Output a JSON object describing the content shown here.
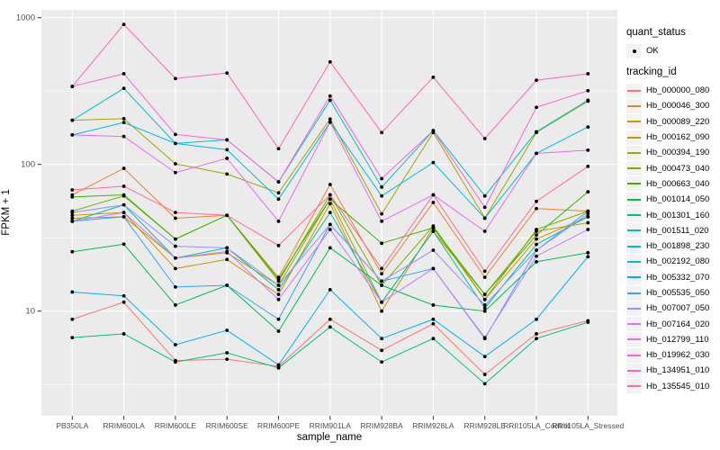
{
  "legend": {
    "quant_status_title": "quant_status",
    "ok_label": "OK",
    "tracking_id_title": "tracking_id"
  },
  "chart_data": {
    "type": "line",
    "title": "",
    "xlabel": "sample_name",
    "ylabel": "FPKM + 1",
    "yscale": "log10",
    "ylim": [
      2.4,
      1150
    ],
    "y_major_ticks": [
      1000,
      100,
      10
    ],
    "y_minor_ticks": [
      316.2,
      31.62,
      3.162
    ],
    "grid": true,
    "legend_position": "right",
    "point_shape": "black-dot",
    "panel_background": "#EBEBEB",
    "gridline_color": "#FFFFFF",
    "tick_label_color": "#4D4D4D",
    "x": [
      "PB350LA",
      "RRIM600LA",
      "RRIM600LE",
      "RRIM600SE",
      "RRIM600PE",
      "RRIM901LA",
      "RRIM928BA",
      "RRIM928LA",
      "RRIM928LE",
      "RRII105LA_Control",
      "RRII105LA_Stressed"
    ],
    "quant_status": "OK",
    "series": [
      {
        "name": "Hb_000000_080",
        "color": "#F8766D",
        "values": [
          8.8,
          11.5,
          4.6,
          4.7,
          4.2,
          8.8,
          5.4,
          8.2,
          3.7,
          7,
          8.6
        ]
      },
      {
        "name": "Hb_000046_300",
        "color": "#EA8331",
        "values": [
          62,
          94,
          43,
          45,
          17,
          73,
          18,
          55,
          17,
          50,
          48
        ]
      },
      {
        "name": "Hb_000089_220",
        "color": "#D89000",
        "values": [
          45,
          47,
          19.5,
          22.5,
          13,
          54,
          10,
          37,
          12,
          31,
          44
        ]
      },
      {
        "name": "Hb_000162_090",
        "color": "#C09B00",
        "values": [
          43,
          44,
          23,
          25,
          15,
          58,
          11.5,
          35,
          13,
          35,
          40
        ]
      },
      {
        "name": "Hb_000394_190",
        "color": "#A3A500",
        "values": [
          200,
          205,
          101,
          86,
          64,
          204,
          46,
          165,
          43,
          165,
          270
        ]
      },
      {
        "name": "Hb_000473_040",
        "color": "#7CAE00",
        "values": [
          48,
          61,
          31,
          45,
          16,
          62,
          15,
          38,
          12,
          36,
          48
        ]
      },
      {
        "name": "Hb_000663_040",
        "color": "#39B600",
        "values": [
          60,
          62,
          31,
          45,
          16.5,
          58,
          29,
          37,
          13,
          33,
          65
        ]
      },
      {
        "name": "Hb_001014_050",
        "color": "#00BB4E",
        "values": [
          25.4,
          28.6,
          11,
          15,
          7.3,
          27,
          15,
          11,
          10,
          21.7,
          25
        ]
      },
      {
        "name": "Hb_001301_160",
        "color": "#00BF7D",
        "values": [
          6.6,
          7,
          4.5,
          5.2,
          4.1,
          7.8,
          4.5,
          6.5,
          3.2,
          6.5,
          8.4
        ]
      },
      {
        "name": "Hb_001511_020",
        "color": "#00C1A3",
        "values": [
          41,
          53,
          23,
          27,
          14,
          47,
          11.5,
          35,
          10.5,
          28.5,
          44
        ]
      },
      {
        "name": "Hb_001898_230",
        "color": "#00BFC4",
        "values": [
          200,
          330,
          139,
          147,
          76,
          274,
          70,
          170,
          61,
          167,
          274
        ]
      },
      {
        "name": "Hb_002192_080",
        "color": "#00BAE0",
        "values": [
          159,
          193,
          139,
          126,
          58,
          194,
          61,
          103,
          43,
          119,
          180
        ]
      },
      {
        "name": "Hb_005332_070",
        "color": "#00B0F6",
        "values": [
          13.5,
          12.7,
          5.9,
          7.4,
          4.3,
          14,
          6.5,
          8.8,
          4.9,
          8.8,
          23.5
        ]
      },
      {
        "name": "Hb_005535_050",
        "color": "#35A2FF",
        "values": [
          41,
          44,
          14.6,
          15,
          8.8,
          39,
          16,
          19.5,
          6.5,
          26,
          48
        ]
      },
      {
        "name": "Hb_007007_050",
        "color": "#9590FF",
        "values": [
          47,
          53,
          27.7,
          27,
          15,
          39,
          16,
          26,
          11,
          26,
          46
        ]
      },
      {
        "name": "Hb_007164_020",
        "color": "#C77CFF",
        "values": [
          41,
          47,
          23,
          25.5,
          12,
          36,
          11.5,
          19.5,
          6.6,
          23.7,
          36
        ]
      },
      {
        "name": "Hb_012799_110",
        "color": "#E76BF3",
        "values": [
          159,
          155,
          88,
          110,
          41,
          194,
          41,
          62,
          35,
          119,
          125
        ]
      },
      {
        "name": "Hb_019962_030",
        "color": "#FA62DB",
        "values": [
          340,
          415,
          160,
          147,
          76,
          293,
          80,
          170,
          51,
          245,
          318
        ]
      },
      {
        "name": "Hb_134951_010",
        "color": "#FF62BC",
        "values": [
          340,
          900,
          385,
          420,
          128,
          500,
          165,
          393,
          150,
          375,
          415
        ]
      },
      {
        "name": "Hb_135545_010",
        "color": "#FF6A98",
        "values": [
          67,
          71,
          47,
          45,
          28,
          62,
          19.5,
          62,
          18.7,
          56,
          97
        ]
      }
    ]
  }
}
